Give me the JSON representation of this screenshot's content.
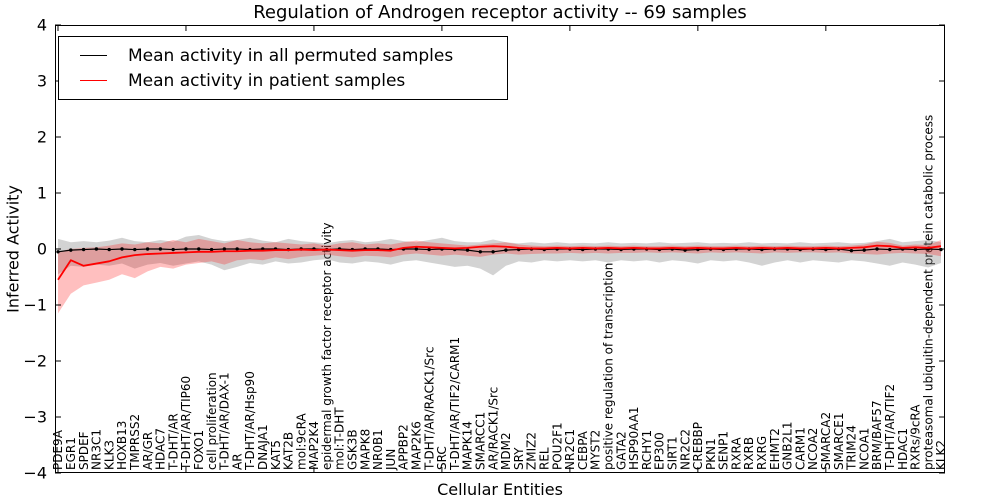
{
  "chart_data": {
    "type": "line",
    "title": "Regulation of Androgen receptor activity -- 69 samples",
    "xlabel": "Cellular Entities",
    "ylabel": "Inferred Activity",
    "ylim": [
      -4,
      4
    ],
    "yticks": [
      -4,
      -3,
      -2,
      -1,
      0,
      1,
      2,
      3,
      4
    ],
    "xtick_every": 10,
    "grid": false,
    "legend_position": "upper left",
    "categories": [
      "PDE9A",
      "EGR1",
      "SPDEF",
      "NR3C1",
      "KLK3",
      "HOXB13",
      "TMPRSS2",
      "AR/GR",
      "HDAC7",
      "T-DHT/AR",
      "T-DHT/AR/TIP60",
      "FOXO1",
      "cell proliferation",
      "T-DHT/AR/DAX-1",
      "AR",
      "T-DHT/AR/Hsp90",
      "DNAJA1",
      "KAT5",
      "KAT2B",
      "mol:9cRA",
      "MAP2K4",
      "epidermal growth factor receptor activity",
      "mol:T-DHT",
      "GSK3B",
      "MAPK8",
      "NR0B1",
      "JUN",
      "APPBP2",
      "MAP2K6",
      "T-DHT/AR/RACK1/Src",
      "SRC",
      "T-DHT/AR/TIF2/CARM1",
      "MAPK14",
      "SMARCC1",
      "AR/RACK1/Src",
      "MDM2",
      "SRY",
      "ZMIZ2",
      "REL",
      "POU2F1",
      "NR2C1",
      "CEBPA",
      "MYST2",
      "positive regulation of transcription",
      "GATA2",
      "HSP90AA1",
      "RCHY1",
      "EP300",
      "SIRT1",
      "NR2C2",
      "CREBBP",
      "PKN1",
      "SENP1",
      "RXRA",
      "RXRB",
      "RXRG",
      "EHMT2",
      "GNB2L1",
      "CARM1",
      "NCOA2",
      "SMARCA2",
      "SMARCE1",
      "TRIM24",
      "NCOA1",
      "BRM/BAF57",
      "T-DHT/AR/TIF2",
      "HDAC1",
      "RXRs/9cRA",
      "proteasomal ubiquitin-dependent protein catabolic process",
      "KLK2"
    ],
    "series": [
      {
        "name": "Mean activity in all permuted samples",
        "color": "#000000",
        "band_fill": "rgba(128,128,128,0.35)",
        "values": [
          -0.05,
          -0.02,
          -0.01,
          0,
          -0.01,
          0,
          -0.01,
          0,
          0,
          -0.01,
          0,
          0,
          -0.01,
          0,
          0,
          -0.01,
          0,
          0,
          -0.01,
          0,
          0,
          -0.01,
          0,
          -0.01,
          0,
          0,
          -0.01,
          0,
          0,
          -0.01,
          0,
          -0.01,
          -0.02,
          -0.05,
          -0.05,
          -0.02,
          -0.01,
          0,
          -0.01,
          0,
          0,
          -0.01,
          0,
          0,
          -0.01,
          0,
          0,
          -0.01,
          0,
          -0.02,
          -0.01,
          0,
          -0.01,
          0,
          0,
          -0.01,
          0,
          0,
          -0.01,
          0,
          -0.01,
          0,
          -0.03,
          -0.02,
          0,
          -0.01,
          0,
          -0.01,
          0,
          -0.01
        ],
        "band_upper": [
          0.18,
          0.12,
          0.14,
          0.12,
          0.15,
          0.2,
          0.14,
          0.12,
          0.16,
          0.13,
          0.22,
          0.25,
          0.18,
          0.14,
          0.16,
          0.2,
          0.15,
          0.12,
          0.18,
          0.14,
          0.12,
          0.1,
          0.14,
          0.16,
          0.12,
          0.14,
          0.18,
          0.14,
          0.12,
          0.16,
          0.2,
          0.14,
          0.12,
          0.12,
          0.17,
          0.12,
          0.1,
          0.12,
          0.1,
          0.12,
          0.1,
          0.11,
          0.1,
          0.12,
          0.1,
          0.11,
          0.1,
          0.12,
          0.1,
          0.11,
          0.12,
          0.1,
          0.11,
          0.1,
          0.12,
          0.1,
          0.11,
          0.1,
          0.12,
          0.1,
          0.11,
          0.12,
          0.1,
          0.11,
          0.14,
          0.18,
          0.12,
          0.14,
          0.16,
          0.12
        ],
        "band_lower": [
          -0.45,
          -0.3,
          -0.32,
          -0.28,
          -0.3,
          -0.26,
          -0.35,
          -0.28,
          -0.25,
          -0.3,
          -0.26,
          -0.22,
          -0.28,
          -0.38,
          -0.32,
          -0.25,
          -0.28,
          -0.22,
          -0.26,
          -0.24,
          -0.2,
          -0.18,
          -0.24,
          -0.26,
          -0.22,
          -0.24,
          -0.28,
          -0.22,
          -0.2,
          -0.24,
          -0.28,
          -0.32,
          -0.3,
          -0.35,
          -0.47,
          -0.3,
          -0.22,
          -0.24,
          -0.2,
          -0.22,
          -0.2,
          -0.22,
          -0.2,
          -0.24,
          -0.2,
          -0.22,
          -0.2,
          -0.24,
          -0.2,
          -0.22,
          -0.26,
          -0.2,
          -0.22,
          -0.2,
          -0.24,
          -0.3,
          -0.24,
          -0.2,
          -0.24,
          -0.2,
          -0.22,
          -0.24,
          -0.2,
          -0.22,
          -0.26,
          -0.3,
          -0.24,
          -0.28,
          -0.33,
          -0.25
        ]
      },
      {
        "name": "Mean activity in patient samples",
        "color": "#ff0000",
        "band_fill": "rgba(255,0,0,0.25)",
        "values": [
          -0.55,
          -0.2,
          -0.3,
          -0.26,
          -0.22,
          -0.15,
          -0.11,
          -0.09,
          -0.08,
          -0.07,
          -0.06,
          -0.05,
          -0.05,
          -0.04,
          -0.04,
          -0.03,
          -0.03,
          -0.02,
          -0.02,
          -0.01,
          -0.02,
          -0.01,
          -0.02,
          -0.03,
          -0.02,
          -0.02,
          -0.03,
          0.02,
          0.04,
          0.03,
          0.02,
          0.01,
          0.02,
          0.04,
          0.05,
          0.04,
          0.02,
          0.01,
          0.01,
          0.02,
          0.01,
          0.02,
          0.01,
          0.02,
          0.01,
          0.02,
          0.01,
          0.01,
          0.02,
          0.01,
          0.02,
          0.01,
          0.01,
          0.02,
          0.01,
          0.02,
          0.01,
          0.02,
          0.01,
          0.01,
          0.02,
          0.01,
          0.02,
          0.03,
          0.06,
          0.05,
          0.02,
          0.03,
          0.02,
          0.05
        ],
        "band_upper": [
          -0.05,
          0.0,
          0.02,
          0.03,
          0.06,
          0.1,
          0.08,
          0.12,
          0.1,
          0.16,
          0.12,
          0.18,
          0.14,
          0.1,
          0.16,
          0.12,
          0.1,
          0.12,
          0.1,
          0.08,
          0.1,
          0.06,
          0.1,
          0.12,
          0.08,
          0.1,
          0.08,
          0.12,
          0.15,
          0.12,
          0.1,
          0.08,
          0.06,
          0.08,
          0.1,
          0.12,
          0.08,
          0.06,
          0.05,
          0.06,
          0.05,
          0.06,
          0.05,
          0.06,
          0.05,
          0.06,
          0.05,
          0.05,
          0.06,
          0.05,
          0.06,
          0.05,
          0.05,
          0.06,
          0.05,
          0.06,
          0.05,
          0.06,
          0.05,
          0.05,
          0.06,
          0.05,
          0.06,
          0.08,
          0.13,
          0.11,
          0.06,
          0.08,
          0.07,
          0.16
        ],
        "band_lower": [
          -1.15,
          -0.8,
          -0.65,
          -0.6,
          -0.55,
          -0.45,
          -0.52,
          -0.4,
          -0.32,
          -0.35,
          -0.28,
          -0.25,
          -0.22,
          -0.28,
          -0.2,
          -0.18,
          -0.2,
          -0.15,
          -0.18,
          -0.14,
          -0.12,
          -0.1,
          -0.13,
          -0.15,
          -0.12,
          -0.13,
          -0.15,
          -0.1,
          -0.08,
          -0.1,
          -0.12,
          -0.1,
          -0.12,
          -0.14,
          -0.1,
          -0.08,
          -0.1,
          -0.09,
          -0.08,
          -0.08,
          -0.07,
          -0.08,
          -0.07,
          -0.08,
          -0.07,
          -0.07,
          -0.06,
          -0.07,
          -0.06,
          -0.07,
          -0.08,
          -0.06,
          -0.07,
          -0.06,
          -0.07,
          -0.08,
          -0.06,
          -0.07,
          -0.06,
          -0.06,
          -0.07,
          -0.06,
          -0.08,
          -0.09,
          -0.1,
          -0.08,
          -0.07,
          -0.08,
          -0.09,
          -0.13
        ]
      }
    ]
  },
  "legend": {
    "items": [
      {
        "label": "Mean activity in all permuted samples",
        "color": "#000000"
      },
      {
        "label": "Mean activity in patient samples",
        "color": "#ff0000"
      }
    ]
  }
}
